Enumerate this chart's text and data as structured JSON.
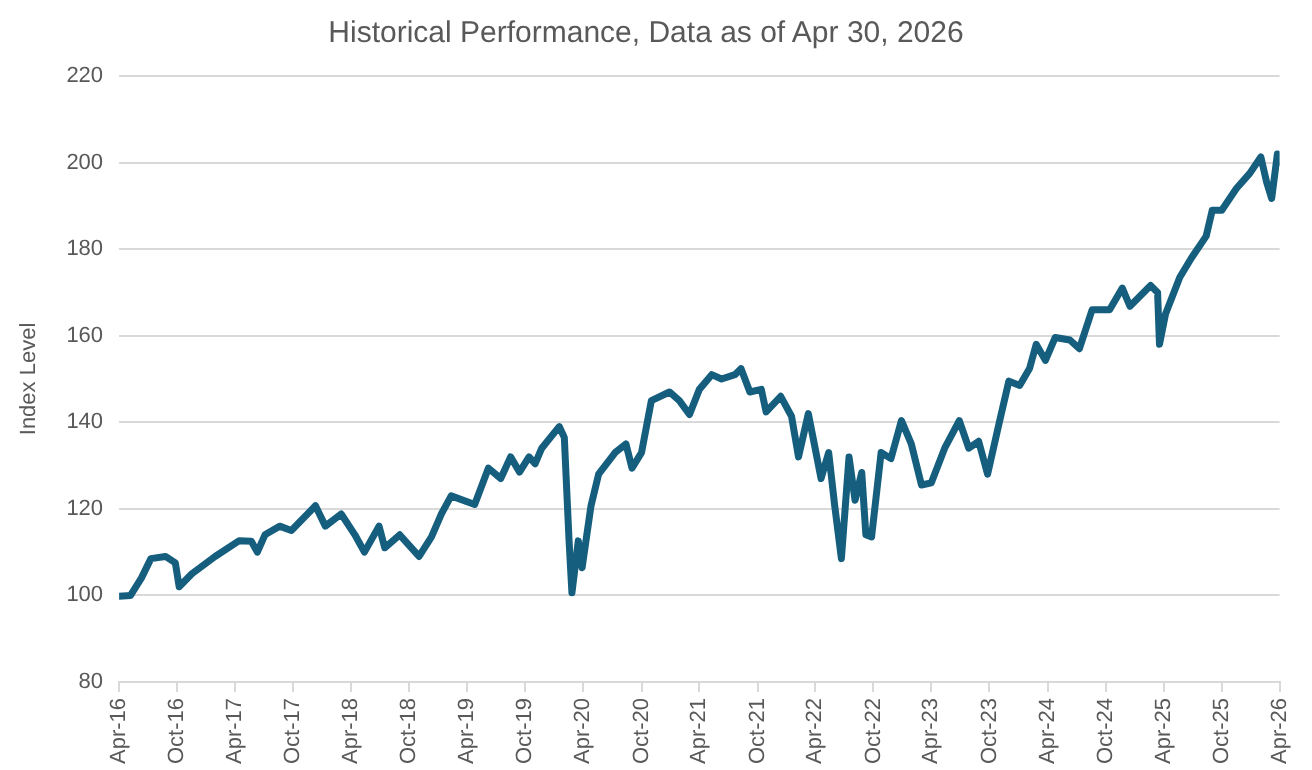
{
  "chart_data": {
    "type": "line",
    "title": "Historical Performance, Data as of Apr 30, 2026",
    "ylabel": "Index Level",
    "x": [
      "2016-04-01",
      "2016-05-07",
      "2016-06-10",
      "2016-07-10",
      "2016-08-25",
      "2016-09-25",
      "2016-10-07",
      "2016-11-16",
      "2017-01-28",
      "2017-04-13",
      "2017-05-22",
      "2017-06-10",
      "2017-07-04",
      "2017-08-19",
      "2017-09-25",
      "2017-12-10",
      "2018-01-10",
      "2018-03-01",
      "2018-04-13",
      "2018-05-13",
      "2018-06-28",
      "2018-07-16",
      "2018-09-01",
      "2018-11-01",
      "2018-12-10",
      "2019-01-10",
      "2019-02-10",
      "2019-04-25",
      "2019-06-07",
      "2019-07-16",
      "2019-08-16",
      "2019-09-13",
      "2019-10-13",
      "2019-11-01",
      "2019-11-22",
      "2020-01-16",
      "2020-02-01",
      "2020-02-16",
      "2020-02-25",
      "2020-03-16",
      "2020-03-28",
      "2020-04-25",
      "2020-05-19",
      "2020-07-10",
      "2020-08-13",
      "2020-09-01",
      "2020-10-01",
      "2020-11-01",
      "2020-12-28",
      "2021-01-28",
      "2021-03-01",
      "2021-04-01",
      "2021-05-10",
      "2021-06-10",
      "2021-07-22",
      "2021-08-10",
      "2021-09-07",
      "2021-10-13",
      "2021-10-28",
      "2021-12-13",
      "2022-01-16",
      "2022-02-07",
      "2022-03-10",
      "2022-04-19",
      "2022-05-13",
      "2022-06-01",
      "2022-06-22",
      "2022-07-16",
      "2022-08-04",
      "2022-08-25",
      "2022-09-07",
      "2022-09-25",
      "2022-10-25",
      "2022-11-25",
      "2022-12-28",
      "2023-01-28",
      "2023-03-01",
      "2023-04-01",
      "2023-05-13",
      "2023-06-28",
      "2023-07-28",
      "2023-08-28",
      "2023-09-25",
      "2023-11-01",
      "2023-12-01",
      "2024-01-04",
      "2024-02-04",
      "2024-02-25",
      "2024-03-25",
      "2024-04-25",
      "2024-06-10",
      "2024-07-10",
      "2024-08-19",
      "2024-10-13",
      "2024-11-22",
      "2024-12-16",
      "2025-02-19",
      "2025-03-13",
      "2025-03-19",
      "2025-04-07",
      "2025-05-22",
      "2025-06-28",
      "2025-08-13",
      "2025-09-01",
      "2025-10-01",
      "2025-11-16",
      "2025-12-28",
      "2026-02-01",
      "2026-02-19",
      "2026-03-07",
      "2026-03-25",
      "2026-04-01"
    ],
    "series": [
      {
        "color": "#155e7e",
        "values": [
          99.8,
          100,
          104,
          108.5,
          109,
          107.5,
          102,
          105,
          109,
          112.6,
          112.5,
          110,
          114,
          116,
          115,
          120.7,
          116,
          118.8,
          114,
          110,
          116,
          111,
          114,
          109,
          113.5,
          118.8,
          123,
          121,
          129.4,
          127,
          132,
          128.5,
          132,
          130.4,
          134,
          139,
          136.5,
          112.6,
          100.6,
          112.6,
          106.4,
          120.7,
          128,
          133,
          135,
          129.4,
          133,
          145,
          147,
          145,
          141.8,
          147.6,
          151,
          150,
          151,
          152.4,
          147,
          147.6,
          142.4,
          146,
          141.4,
          132,
          142,
          127,
          133,
          120.7,
          108.5,
          132,
          122,
          128.4,
          114,
          113.5,
          133,
          131.6,
          140.4,
          135,
          125.5,
          126,
          134,
          140.4,
          134,
          135.6,
          128,
          140,
          149.5,
          148.5,
          152.4,
          158,
          154.3,
          159.6,
          159,
          157,
          166,
          166,
          171,
          166.8,
          171.6,
          170,
          158,
          165,
          173.5,
          178,
          183,
          189,
          189,
          194,
          197.5,
          201.3,
          195.5,
          191.7,
          202,
          200
        ]
      }
    ],
    "xlim": [
      "2016-04-01",
      "2026-04-01"
    ],
    "xticks": [
      {
        "value": "2016-04-01",
        "label": "Apr-16"
      },
      {
        "value": "2016-10-01",
        "label": "Oct-16"
      },
      {
        "value": "2017-04-01",
        "label": "Apr-17"
      },
      {
        "value": "2017-10-01",
        "label": "Oct-17"
      },
      {
        "value": "2018-04-01",
        "label": "Apr-18"
      },
      {
        "value": "2018-10-01",
        "label": "Oct-18"
      },
      {
        "value": "2019-04-01",
        "label": "Apr-19"
      },
      {
        "value": "2019-10-01",
        "label": "Oct-19"
      },
      {
        "value": "2020-04-01",
        "label": "Apr-20"
      },
      {
        "value": "2020-10-01",
        "label": "Oct-20"
      },
      {
        "value": "2021-04-01",
        "label": "Apr-21"
      },
      {
        "value": "2021-10-01",
        "label": "Oct-21"
      },
      {
        "value": "2022-04-01",
        "label": "Apr-22"
      },
      {
        "value": "2022-10-01",
        "label": "Oct-22"
      },
      {
        "value": "2023-04-01",
        "label": "Apr-23"
      },
      {
        "value": "2023-10-01",
        "label": "Oct-23"
      },
      {
        "value": "2024-04-01",
        "label": "Apr-24"
      },
      {
        "value": "2024-10-01",
        "label": "Oct-24"
      },
      {
        "value": "2025-04-01",
        "label": "Apr-25"
      },
      {
        "value": "2025-10-01",
        "label": "Oct-25"
      },
      {
        "value": "2026-04-01",
        "label": "Apr-26"
      }
    ],
    "ylim": [
      80,
      220
    ],
    "yticks": [
      80,
      100,
      120,
      140,
      160,
      180,
      200,
      220
    ],
    "grid": "y",
    "legend": false,
    "marker": "none",
    "line_style": "solid"
  }
}
